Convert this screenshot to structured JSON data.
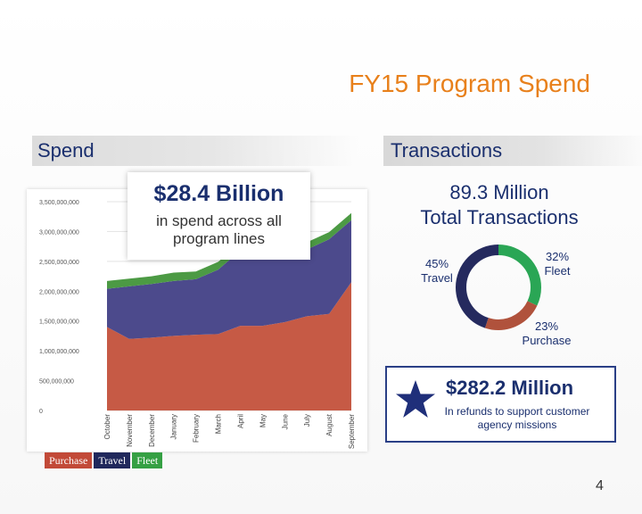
{
  "title": "FY15 Program Spend",
  "sections": {
    "spend": "Spend",
    "transactions": "Transactions"
  },
  "spend_callout": {
    "amount": "$28.4 Billion",
    "caption": "in spend across all program lines"
  },
  "transactions_callout": {
    "line1": "89.3 Million",
    "line2": "Total Transactions"
  },
  "donut": {
    "segments": [
      {
        "label": "32%",
        "sublabel": "Fleet",
        "value": 32,
        "color": "#2aa655"
      },
      {
        "label": "23%",
        "sublabel": "Purchase",
        "value": 23,
        "color": "#b0523c"
      },
      {
        "label": "45%",
        "sublabel": "Travel",
        "value": 45,
        "color": "#252a5e"
      }
    ]
  },
  "refund": {
    "amount": "$282.2 Million",
    "caption": "In refunds to support customer agency missions"
  },
  "legend": [
    {
      "label": "Purchase",
      "color": "#c24a38"
    },
    {
      "label": "Travel",
      "color": "#20285c"
    },
    {
      "label": "Fleet",
      "color": "#35a043"
    }
  ],
  "page_number": "4",
  "chart_data": {
    "type": "area",
    "stacked": true,
    "categories": [
      "October",
      "November",
      "December",
      "January",
      "February",
      "March",
      "April",
      "May",
      "June",
      "July",
      "August",
      "September"
    ],
    "y_ticks": [
      "0",
      "500,000,000",
      "1,000,000,000",
      "1,500,000,000",
      "2,000,000,000",
      "2,500,000,000",
      "3,000,000,000",
      "3,500,000,000"
    ],
    "ylim": [
      0,
      3500000000
    ],
    "grid": true,
    "series": [
      {
        "name": "Purchase",
        "color": "#c65a45",
        "values": [
          1400000000,
          1200000000,
          1220000000,
          1250000000,
          1270000000,
          1280000000,
          1420000000,
          1420000000,
          1480000000,
          1580000000,
          1620000000,
          2150000000
        ]
      },
      {
        "name": "Travel",
        "color": "#4c4a8c",
        "values": [
          640000000,
          880000000,
          900000000,
          920000000,
          930000000,
          1080000000,
          1260000000,
          1200000000,
          1100000000,
          1120000000,
          1250000000,
          1040000000
        ]
      },
      {
        "name": "Fleet",
        "color": "#4c9a44",
        "values": [
          130000000,
          130000000,
          130000000,
          140000000,
          130000000,
          130000000,
          130000000,
          120000000,
          120000000,
          120000000,
          120000000,
          120000000
        ]
      }
    ]
  }
}
